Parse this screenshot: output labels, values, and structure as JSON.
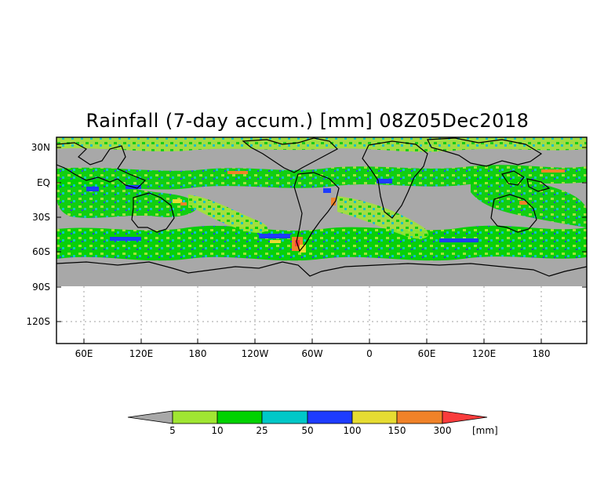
{
  "title": "Rainfall (7-day accum.) [mm] 08Z05Dec2018",
  "lat_labels": [
    "30N",
    "EQ",
    "30S",
    "60S",
    "90S",
    "120S"
  ],
  "lon_labels": [
    "60E",
    "120E",
    "180",
    "120W",
    "60W",
    "0",
    "60E",
    "120E",
    "180"
  ],
  "colorbar": {
    "levels": [
      "5",
      "10",
      "25",
      "50",
      "100",
      "150",
      "300"
    ],
    "units": "[mm]",
    "colors": [
      "#a8a8a8",
      "#a0e632",
      "#00d200",
      "#00c8c8",
      "#1e3cff",
      "#e6dc32",
      "#f08228",
      "#fa3c3c"
    ]
  },
  "colors": {
    "ocean_no_rain": "#a8a8a8",
    "blank_area": "#ffffff",
    "coastline": "#000000",
    "grid": "#a0a0a0"
  }
}
